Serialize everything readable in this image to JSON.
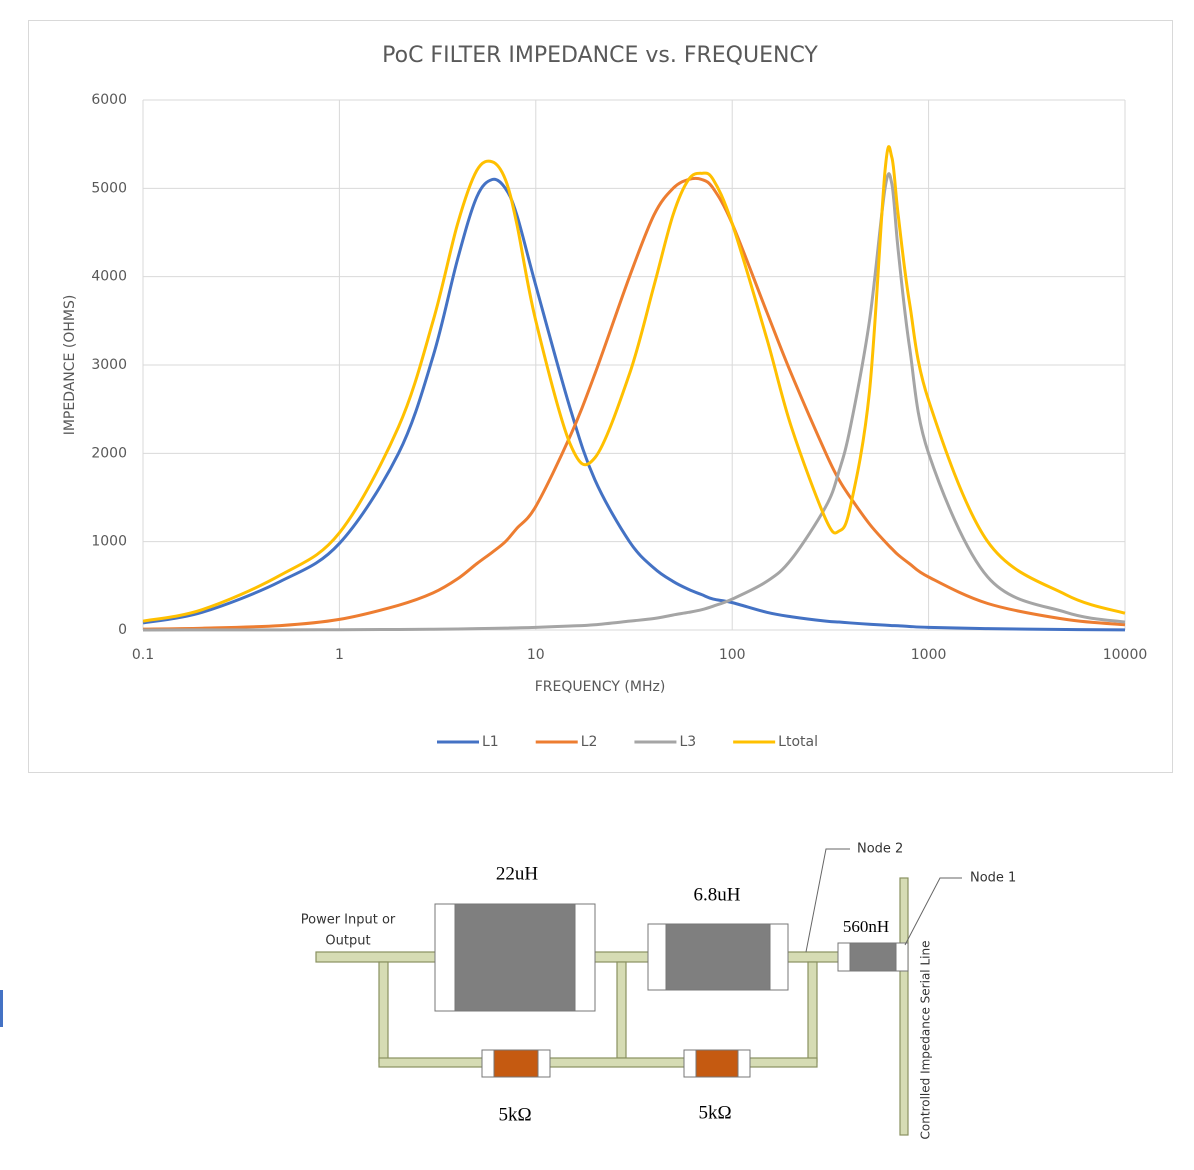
{
  "chart_data": {
    "type": "line",
    "title": "PoC FILTER IMPEDANCE vs. FREQUENCY",
    "x_label": "FREQUENCY (MHz)",
    "y_label": "IMPEDANCE (OHMS)",
    "x": [
      0.1,
      0.2,
      0.5,
      1,
      2,
      3,
      4,
      5,
      6,
      7,
      8,
      10,
      15,
      20,
      30,
      40,
      50,
      60,
      70,
      80,
      100,
      150,
      200,
      300,
      350,
      400,
      500,
      600,
      650,
      700,
      800,
      1000,
      2000,
      5000,
      10000
    ],
    "series": [
      {
        "name": "L1",
        "color": "#4472c4",
        "values": [
          80,
          200,
          550,
          980,
          2000,
          3100,
          4200,
          4900,
          5100,
          5000,
          4700,
          3900,
          2500,
          1700,
          1000,
          700,
          550,
          460,
          400,
          350,
          310,
          200,
          150,
          100,
          90,
          80,
          65,
          55,
          50,
          48,
          40,
          30,
          15,
          5,
          2
        ]
      },
      {
        "name": "L2",
        "color": "#ed7d31",
        "values": [
          10,
          20,
          50,
          120,
          280,
          420,
          580,
          750,
          880,
          1000,
          1150,
          1400,
          2200,
          2900,
          4000,
          4700,
          5000,
          5100,
          5100,
          5000,
          4600,
          3600,
          2900,
          2000,
          1700,
          1500,
          1200,
          1000,
          920,
          850,
          750,
          600,
          300,
          120,
          60
        ]
      },
      {
        "name": "L3",
        "color": "#a5a5a5",
        "values": [
          0,
          1,
          2,
          3,
          6,
          9,
          12,
          15,
          18,
          21,
          24,
          30,
          45,
          60,
          100,
          130,
          170,
          200,
          230,
          270,
          350,
          550,
          800,
          1400,
          1800,
          2300,
          3500,
          5000,
          5050,
          4300,
          3200,
          2000,
          600,
          200,
          90
        ]
      },
      {
        "name": "Ltotal",
        "color": "#ffc000",
        "values": [
          100,
          230,
          620,
          1100,
          2300,
          3500,
          4600,
          5200,
          5300,
          5100,
          4600,
          3500,
          2100,
          1950,
          2900,
          3900,
          4700,
          5100,
          5170,
          5100,
          4600,
          3300,
          2300,
          1250,
          1120,
          1400,
          2700,
          5200,
          5350,
          4700,
          3700,
          2600,
          1000,
          400,
          190
        ]
      }
    ],
    "xlim": [
      0.1,
      10000
    ],
    "xticks": [
      0.1,
      1,
      10,
      100,
      1000,
      10000
    ],
    "log_x": true,
    "ylim": [
      0,
      6000
    ],
    "yticks": [
      0,
      1000,
      2000,
      3000,
      4000,
      5000,
      6000
    ],
    "grid": true,
    "legend": "bottom"
  },
  "diagram": {
    "power_label": [
      "Power Input or",
      "Output"
    ],
    "inductors": [
      "22uH",
      "6.8uH",
      "560nH"
    ],
    "resistors": [
      "5kΩ",
      "5kΩ"
    ],
    "nodes": [
      "Node 2",
      "Node 1"
    ],
    "line_label": "Controlled Impedance Serial Line"
  }
}
